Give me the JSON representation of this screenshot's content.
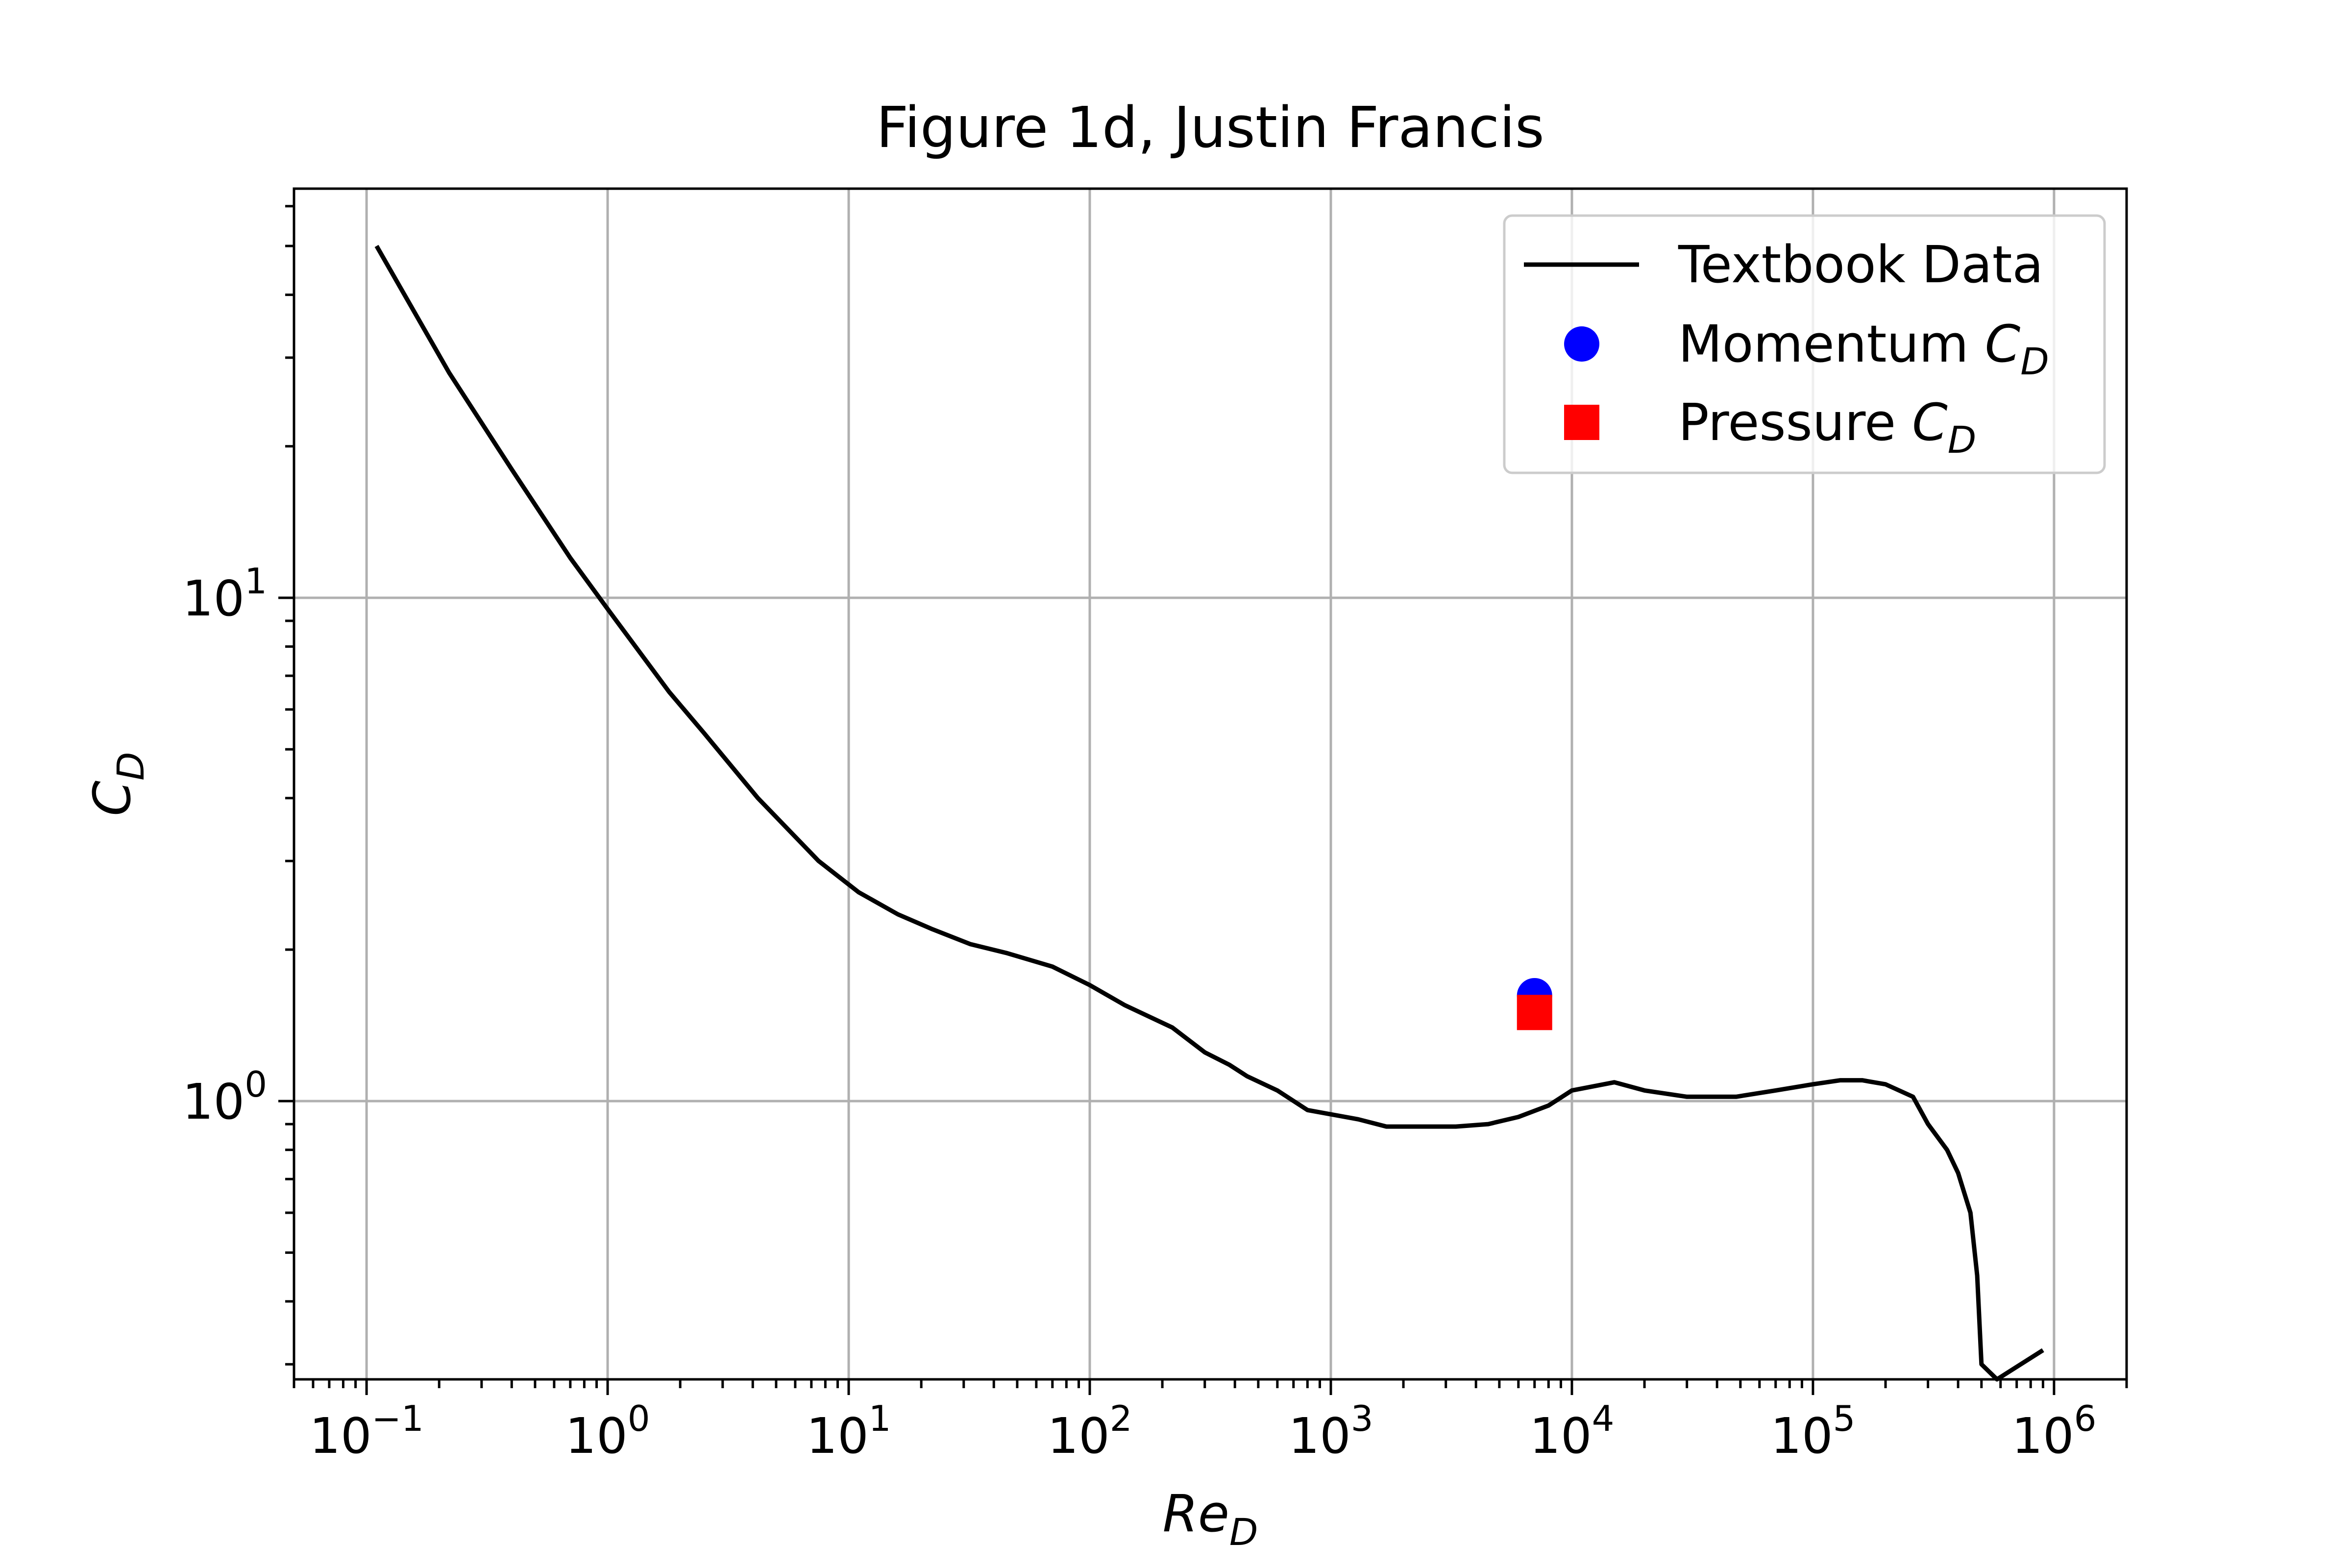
{
  "chart_data": {
    "type": "line",
    "title": "Figure 1d, Justin Francis",
    "xlabel": "Re",
    "xlabel_sub": "D",
    "ylabel": "C",
    "ylabel_sub": "D",
    "xscale": "log",
    "yscale": "log",
    "xlim": [
      0.05,
      2000000
    ],
    "ylim": [
      0.28,
      65
    ],
    "grid": true,
    "legend_position": "top-right",
    "x_tick_labels": [
      {
        "value": 0.1,
        "base": "10",
        "exp": "−1"
      },
      {
        "value": 1,
        "base": "10",
        "exp": "0"
      },
      {
        "value": 10,
        "base": "10",
        "exp": "1"
      },
      {
        "value": 100,
        "base": "10",
        "exp": "2"
      },
      {
        "value": 1000,
        "base": "10",
        "exp": "3"
      },
      {
        "value": 10000,
        "base": "10",
        "exp": "4"
      },
      {
        "value": 100000,
        "base": "10",
        "exp": "5"
      },
      {
        "value": 1000000,
        "base": "10",
        "exp": "6"
      }
    ],
    "y_tick_labels": [
      {
        "value": 1,
        "base": "10",
        "exp": "0"
      },
      {
        "value": 10,
        "base": "10",
        "exp": "1"
      }
    ],
    "series": [
      {
        "name": "Textbook Data",
        "name_sub": "",
        "kind": "line",
        "color": "#000000",
        "x": [
          0.11,
          0.22,
          0.4,
          0.7,
          1.0,
          1.8,
          2.5,
          4.2,
          7.5,
          11,
          16,
          22,
          32,
          45,
          70,
          100,
          140,
          220,
          300,
          380,
          450,
          600,
          800,
          1300,
          1700,
          2500,
          3300,
          4500,
          6000,
          8000,
          10000,
          15000,
          20000,
          30000,
          48000,
          70000,
          100000,
          130000,
          160000,
          200000,
          260000,
          300000,
          360000,
          400000,
          450000,
          480000,
          500000,
          580000,
          900000
        ],
        "y": [
          50,
          28,
          18,
          12,
          9.5,
          6.5,
          5.4,
          4.0,
          3.0,
          2.6,
          2.35,
          2.2,
          2.05,
          1.97,
          1.85,
          1.7,
          1.55,
          1.4,
          1.25,
          1.18,
          1.12,
          1.05,
          0.96,
          0.92,
          0.89,
          0.89,
          0.89,
          0.9,
          0.93,
          0.98,
          1.05,
          1.09,
          1.05,
          1.02,
          1.02,
          1.05,
          1.08,
          1.1,
          1.1,
          1.08,
          1.02,
          0.9,
          0.8,
          0.72,
          0.6,
          0.45,
          0.3,
          0.28,
          0.32
        ]
      },
      {
        "name": "Momentum C",
        "name_sub": "D",
        "kind": "marker",
        "marker": "circle",
        "color": "#0000ff",
        "x": [
          7000
        ],
        "y": [
          1.62
        ]
      },
      {
        "name": "Pressure C",
        "name_sub": "D",
        "kind": "marker",
        "marker": "square",
        "color": "#ff0000",
        "x": [
          7000
        ],
        "y": [
          1.5
        ]
      }
    ]
  }
}
